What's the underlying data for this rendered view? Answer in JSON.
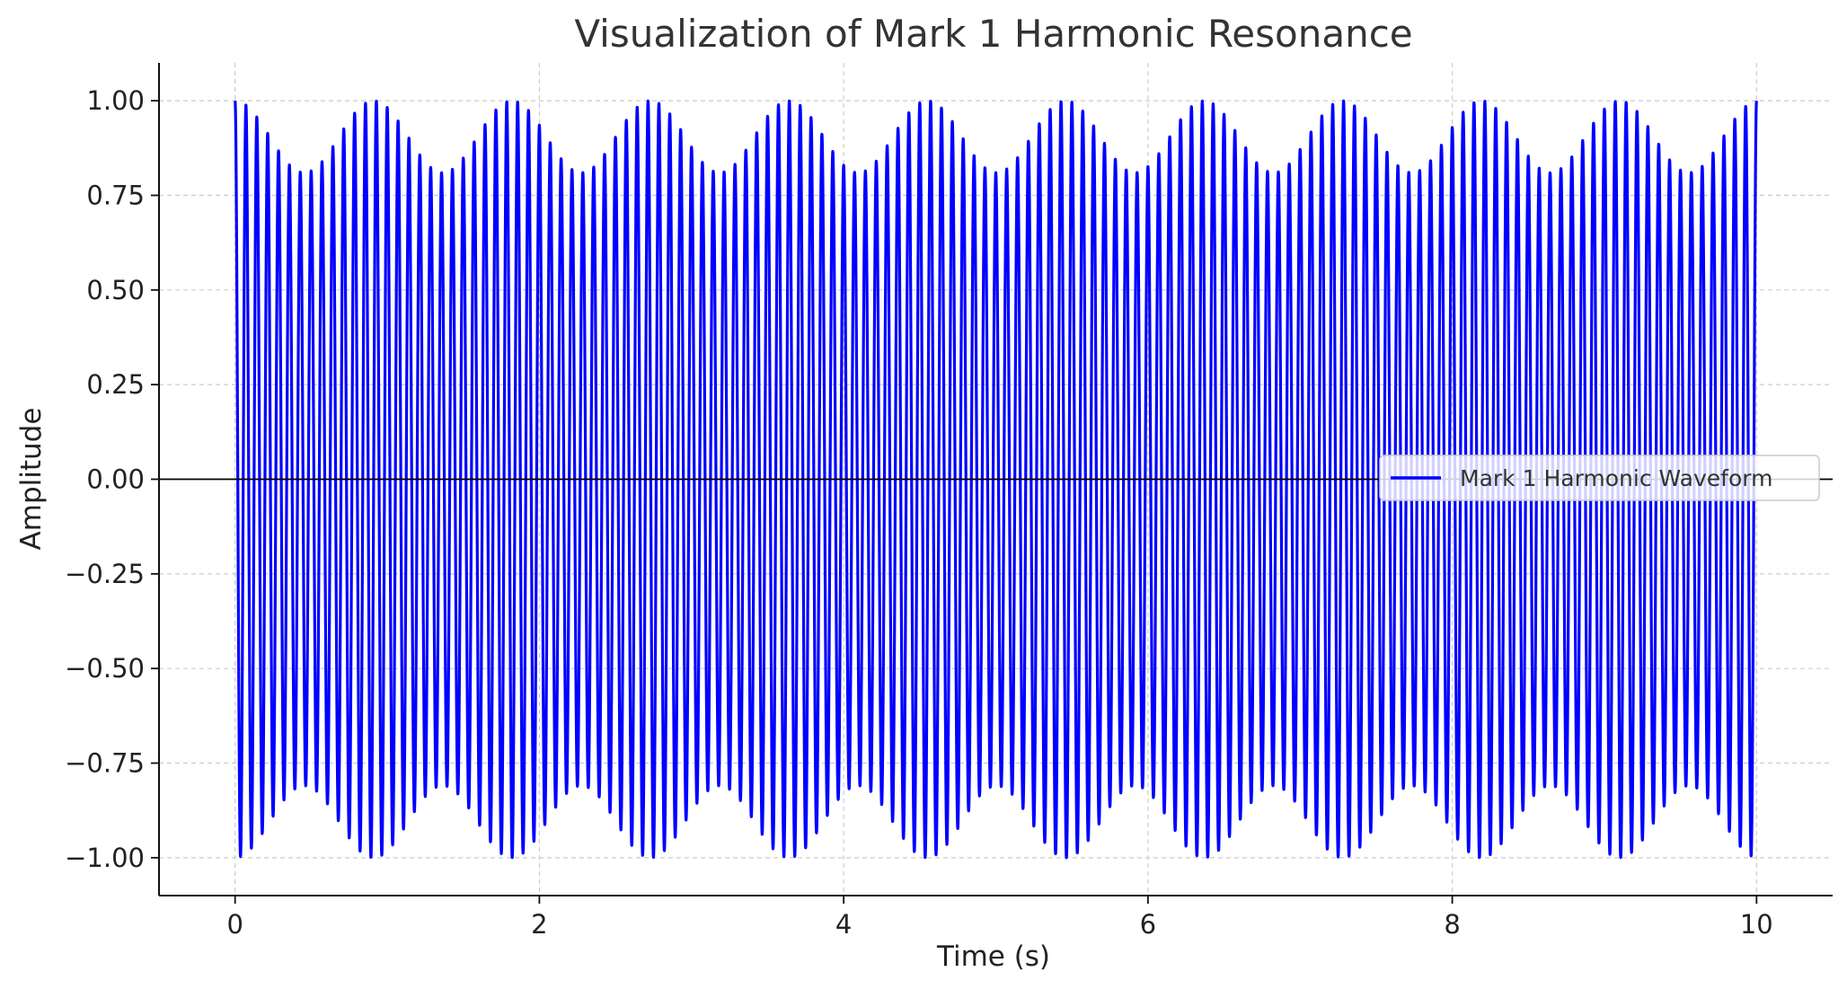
{
  "chart_data": {
    "type": "line",
    "title": "Visualization of Mark 1 Harmonic Resonance",
    "xlabel": "Time (s)",
    "ylabel": "Amplitude",
    "xlim": [
      -0.5,
      10.5
    ],
    "ylim": [
      -1.1,
      1.1
    ],
    "x_ticks": [
      0,
      2,
      4,
      6,
      8,
      10
    ],
    "x_tick_labels": [
      "0",
      "2",
      "4",
      "6",
      "8",
      "10"
    ],
    "y_ticks": [
      1.0,
      0.75,
      0.5,
      0.25,
      0.0,
      -0.25,
      -0.5,
      -0.75,
      -1.0
    ],
    "y_tick_labels": [
      "1.00",
      "0.75",
      "0.50",
      "0.25",
      "0.00",
      "−0.25",
      "−0.50",
      "−0.75",
      "−1.00"
    ],
    "grid": true,
    "zero_line": 0,
    "legend": {
      "position": "center-right",
      "entries": [
        "Mark 1 Harmonic Waveform"
      ]
    },
    "series": [
      {
        "name": "Mark 1 Harmonic Waveform",
        "color": "#0000ff",
        "x_range": [
          0,
          10
        ],
        "function": "y = cos(2*pi*f*t) modulated between 1.00 and 0.81 peak amplitude",
        "carrier_cycles": 140,
        "envelope_period": 0.91,
        "envelope_max": 1.0,
        "envelope_min": 0.81,
        "envelope_peaks_x": [
          0.0,
          0.9,
          1.8,
          2.7,
          3.6,
          4.5,
          5.4,
          6.3,
          7.2,
          8.1,
          9.0,
          10.0
        ],
        "envelope_troughs_x": [
          0.45,
          1.35,
          2.25,
          3.15,
          4.05,
          4.95,
          5.85,
          6.75,
          7.65,
          8.55,
          9.45
        ]
      }
    ]
  }
}
